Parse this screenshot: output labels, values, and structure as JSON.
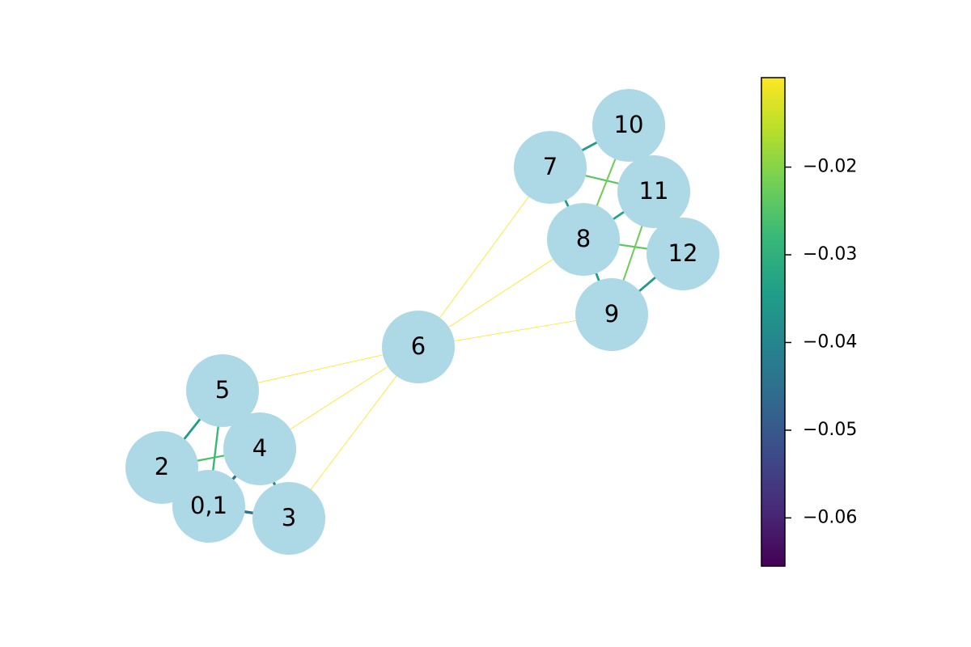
{
  "graph": {
    "node_color": "#add8e6",
    "nodes": [
      {
        "id": "0,1",
        "label": "0,1"
      },
      {
        "id": "2",
        "label": "2"
      },
      {
        "id": "3",
        "label": "3"
      },
      {
        "id": "4",
        "label": "4"
      },
      {
        "id": "5",
        "label": "5"
      },
      {
        "id": "6",
        "label": "6"
      },
      {
        "id": "7",
        "label": "7"
      },
      {
        "id": "8",
        "label": "8"
      },
      {
        "id": "9",
        "label": "9"
      },
      {
        "id": "10",
        "label": "10"
      },
      {
        "id": "11",
        "label": "11"
      },
      {
        "id": "12",
        "label": "12"
      }
    ],
    "edges": [
      {
        "source": "5",
        "target": "2",
        "weight": -0.035
      },
      {
        "source": "5",
        "target": "0,1",
        "weight": -0.028
      },
      {
        "source": "2",
        "target": "4",
        "weight": -0.026
      },
      {
        "source": "4",
        "target": "0,1",
        "weight": -0.045
      },
      {
        "source": "0,1",
        "target": "3",
        "weight": -0.045
      },
      {
        "source": "4",
        "target": "3",
        "weight": -0.04
      },
      {
        "source": "6",
        "target": "5",
        "weight": -0.001
      },
      {
        "source": "6",
        "target": "4",
        "weight": -0.001
      },
      {
        "source": "6",
        "target": "3",
        "weight": -0.001
      },
      {
        "source": "6",
        "target": "7",
        "weight": -0.001
      },
      {
        "source": "6",
        "target": "8",
        "weight": -0.001
      },
      {
        "source": "6",
        "target": "9",
        "weight": -0.001
      },
      {
        "source": "7",
        "target": "10",
        "weight": -0.035
      },
      {
        "source": "7",
        "target": "11",
        "weight": -0.024
      },
      {
        "source": "7",
        "target": "8",
        "weight": -0.035
      },
      {
        "source": "10",
        "target": "8",
        "weight": -0.022
      },
      {
        "source": "8",
        "target": "11",
        "weight": -0.033
      },
      {
        "source": "8",
        "target": "12",
        "weight": -0.024
      },
      {
        "source": "8",
        "target": "9",
        "weight": -0.035
      },
      {
        "source": "11",
        "target": "9",
        "weight": -0.022
      },
      {
        "source": "9",
        "target": "12",
        "weight": -0.035
      }
    ]
  },
  "colorbar": {
    "colormap": "viridis",
    "vmin": -0.0655,
    "vmax": -0.0098,
    "ticks": [
      {
        "value": -0.02,
        "label": "−0.02"
      },
      {
        "value": -0.03,
        "label": "−0.03"
      },
      {
        "value": -0.04,
        "label": "−0.04"
      },
      {
        "value": -0.05,
        "label": "−0.05"
      },
      {
        "value": -0.06,
        "label": "−0.06"
      }
    ],
    "stops": [
      "#440154",
      "#482878",
      "#3e4989",
      "#31688e",
      "#26828e",
      "#1f9e89",
      "#35b779",
      "#6ece58",
      "#b5de2b",
      "#fde725"
    ]
  }
}
